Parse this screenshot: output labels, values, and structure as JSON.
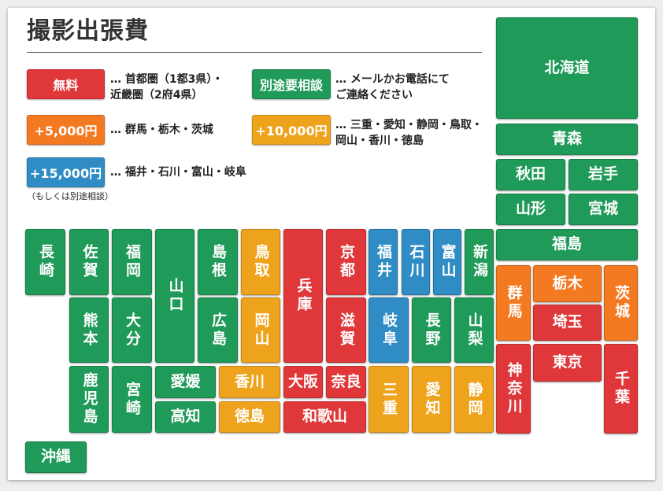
{
  "title": "撮影出張費",
  "legend": [
    {
      "id": "free",
      "label": "無料",
      "color": "#df373a",
      "note": "… 首都圏（1都3県）・\n近畿圏（2府4県）"
    },
    {
      "id": "consult",
      "label": "別途要相談",
      "color": "#1f9a58",
      "note": "… メールかお電話にて\nご連絡ください"
    },
    {
      "id": "plus5000",
      "label": "+5,000円",
      "color": "#f47a22",
      "note": "… 群馬・栃木・茨城"
    },
    {
      "id": "plus10000",
      "label": "+10,000円",
      "color": "#eea31d",
      "note": "… 三重・愛知・静岡・鳥取・\n岡山・香川・徳島"
    },
    {
      "id": "plus15000",
      "label": "+15,000円",
      "color": "#2f8cc4",
      "note": "… 福井・石川・富山・岐阜",
      "subnote": "（もしくは別途相談）"
    }
  ],
  "prefectures": {
    "hokkaido": "北海道",
    "aomori": "青森",
    "akita": "秋田",
    "iwate": "岩手",
    "yamagata": "山形",
    "miyagi": "宮城",
    "fukushima": "福島",
    "gunma": "群馬",
    "tochigi": "栃木",
    "ibaraki": "茨城",
    "saitama": "埼玉",
    "kanagawa": "神奈川",
    "tokyo": "東京",
    "chiba": "千葉",
    "nagasaki": "長崎",
    "saga": "佐賀",
    "fukuoka": "福岡",
    "yamaguchi": "山口",
    "shimane": "島根",
    "tottori": "鳥取",
    "hyogo": "兵庫",
    "kyoto": "京都",
    "fukui": "福井",
    "ishikawa": "石川",
    "toyama": "富山",
    "niigata": "新潟",
    "kumamoto": "熊本",
    "oita": "大分",
    "hiroshima": "広島",
    "okayama": "岡山",
    "shiga": "滋賀",
    "gifu": "岐阜",
    "nagano": "長野",
    "yamanashi": "山梨",
    "kagoshima": "鹿児島",
    "miyazaki": "宮崎",
    "ehime": "愛媛",
    "kagawa": "香川",
    "osaka": "大阪",
    "nara": "奈良",
    "mie": "三重",
    "aichi": "愛知",
    "shizuoka": "静岡",
    "kochi": "高知",
    "tokushima": "徳島",
    "wakayama": "和歌山",
    "okinawa": "沖縄"
  }
}
